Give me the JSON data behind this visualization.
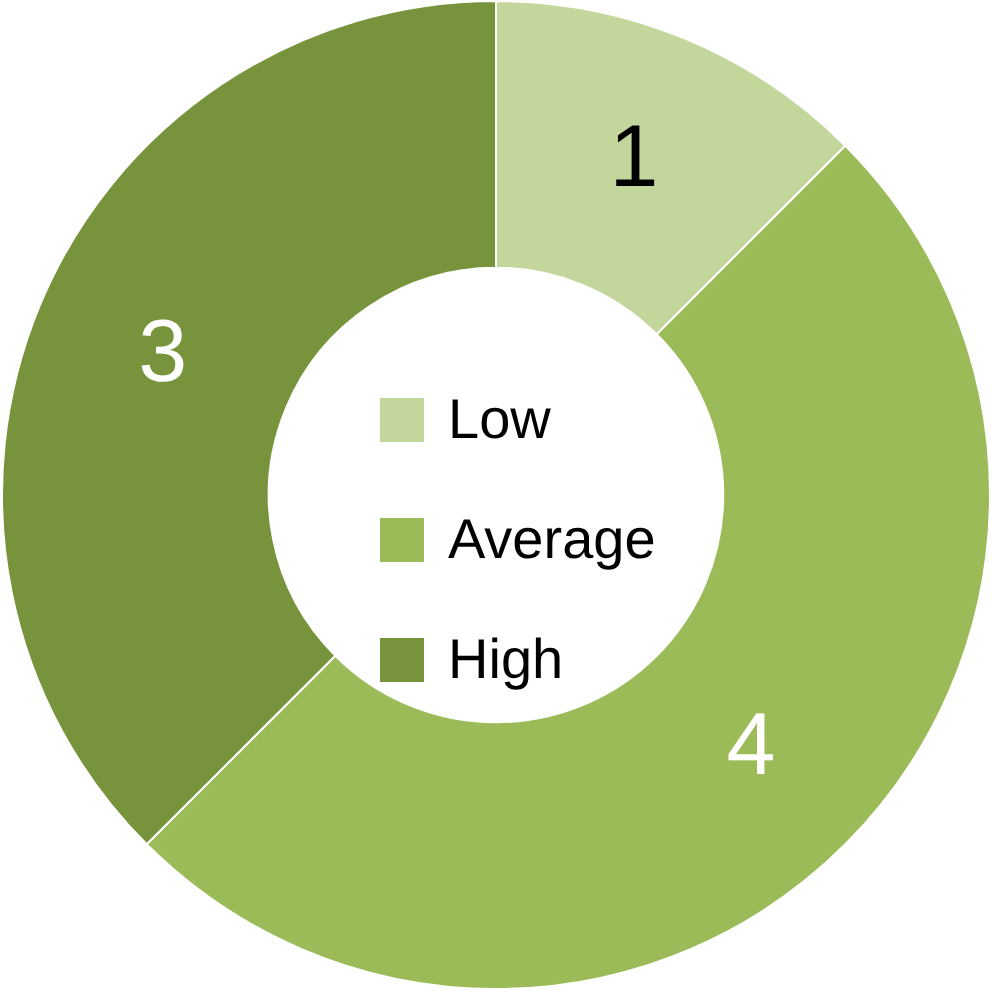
{
  "chart_data": {
    "type": "donut",
    "categories": [
      "Low",
      "Average",
      "High"
    ],
    "values": [
      1,
      4,
      3
    ],
    "colors": [
      "#c3d69b",
      "#9bbb59",
      "#77933c"
    ],
    "data_labels": true,
    "legend": "center"
  }
}
